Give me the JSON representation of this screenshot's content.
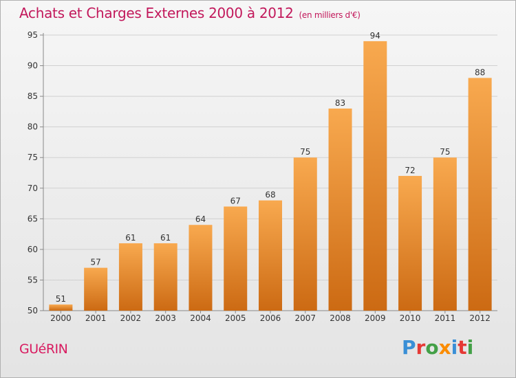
{
  "header": {
    "title": "Achats et Charges Externes 2000 à 2012",
    "subtitle": "(en milliers d'€)"
  },
  "footer": {
    "commune": "GUéRIN",
    "logo_text": "Proxiti"
  },
  "colors": {
    "bar_top": "#f8a94f",
    "bar_bottom": "#cc6a13",
    "title": "#c2185b"
  },
  "chart_data": {
    "type": "bar",
    "title": "Achats et Charges Externes 2000 à 2012",
    "subtitle": "(en milliers d'€)",
    "categories": [
      "2000",
      "2001",
      "2002",
      "2003",
      "2004",
      "2005",
      "2006",
      "2007",
      "2008",
      "2009",
      "2010",
      "2011",
      "2012"
    ],
    "values": [
      51,
      57,
      61,
      61,
      64,
      67,
      68,
      75,
      83,
      94,
      72,
      75,
      88
    ],
    "ylim": [
      50,
      95
    ],
    "yticks": [
      50,
      55,
      60,
      65,
      70,
      75,
      80,
      85,
      90,
      95
    ],
    "grid": true,
    "legend": "none"
  }
}
